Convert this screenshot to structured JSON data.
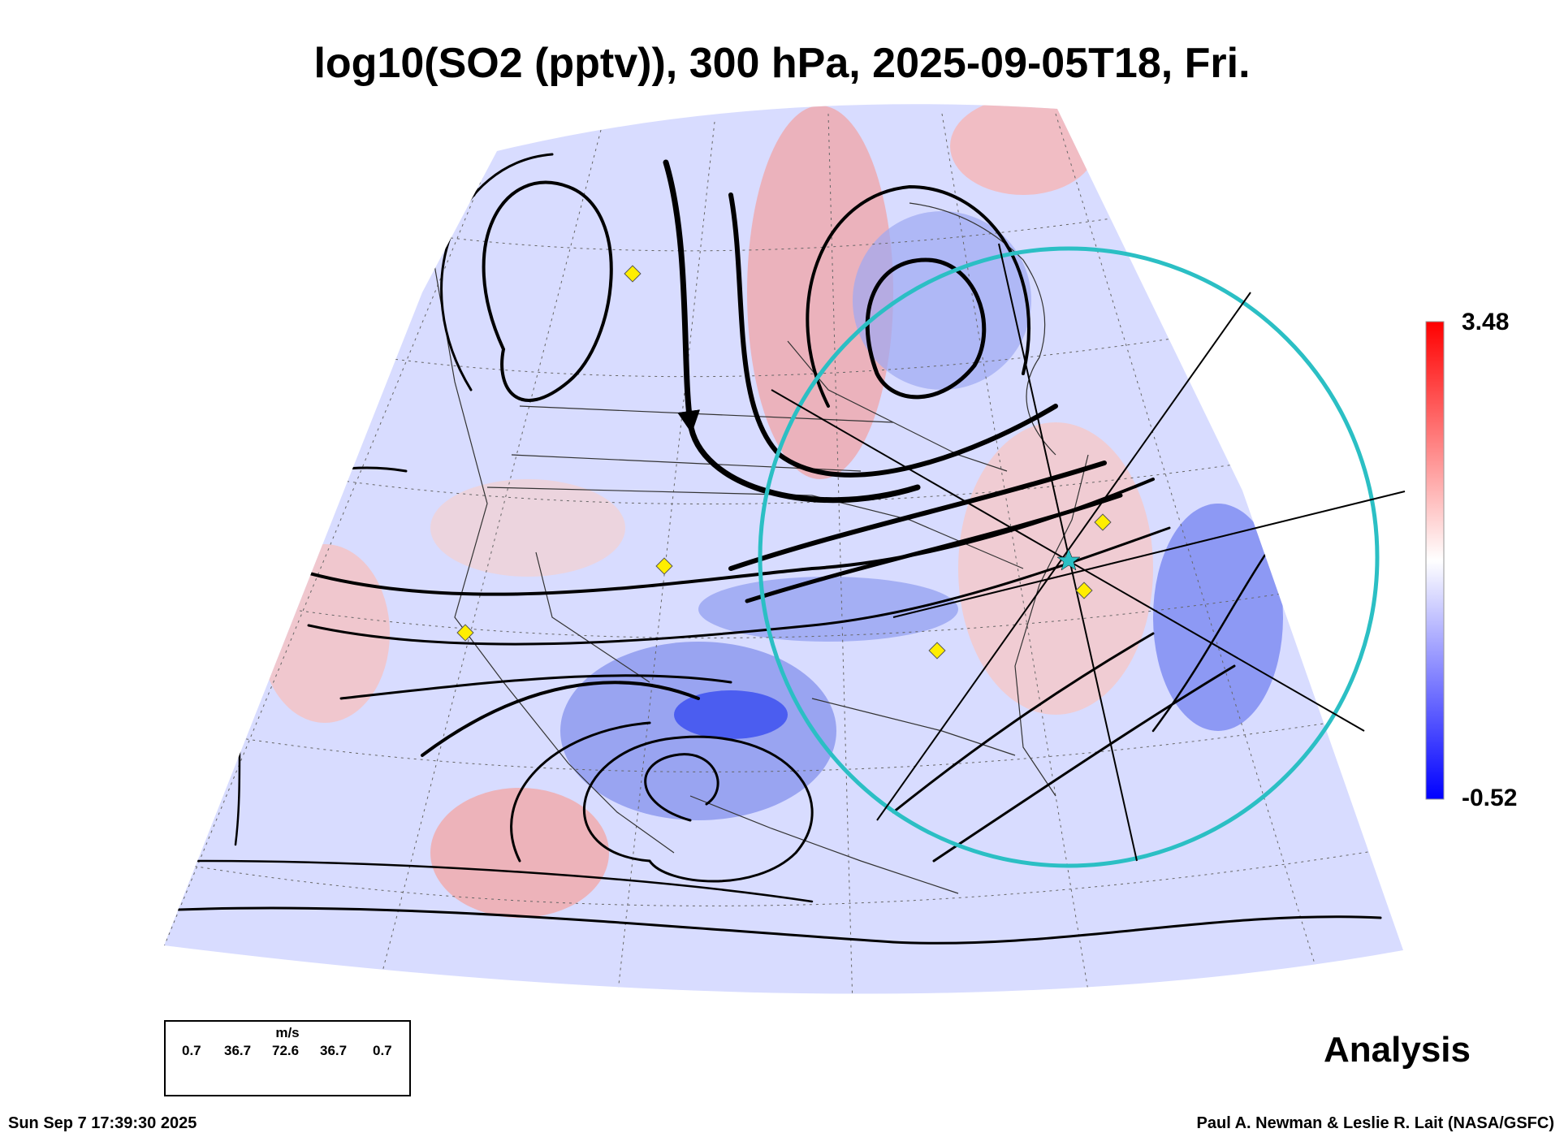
{
  "title": "log10(SO2 (pptv)), 300 hPa, 2025-09-05T18, Fri.",
  "colorbar": {
    "max_label": "3.48",
    "min_label": "-0.52",
    "max_color": "#ff0000",
    "mid_color": "#ffffff",
    "min_color": "#0000ff"
  },
  "legend": {
    "unit": "m/s",
    "values": [
      "0.7",
      "36.7",
      "72.6",
      "36.7",
      "0.7"
    ]
  },
  "analysis_label": "Analysis",
  "footer": {
    "timestamp": "Sun Sep  7 17:39:30 2025",
    "credit": "Paul A. Newman & Leslie R. Lait (NASA/GSFC)"
  },
  "markers": {
    "diamond_color": "#ffee00",
    "circle_color": "#2bbfc4",
    "center_star_color": "#2bbfc4"
  }
}
